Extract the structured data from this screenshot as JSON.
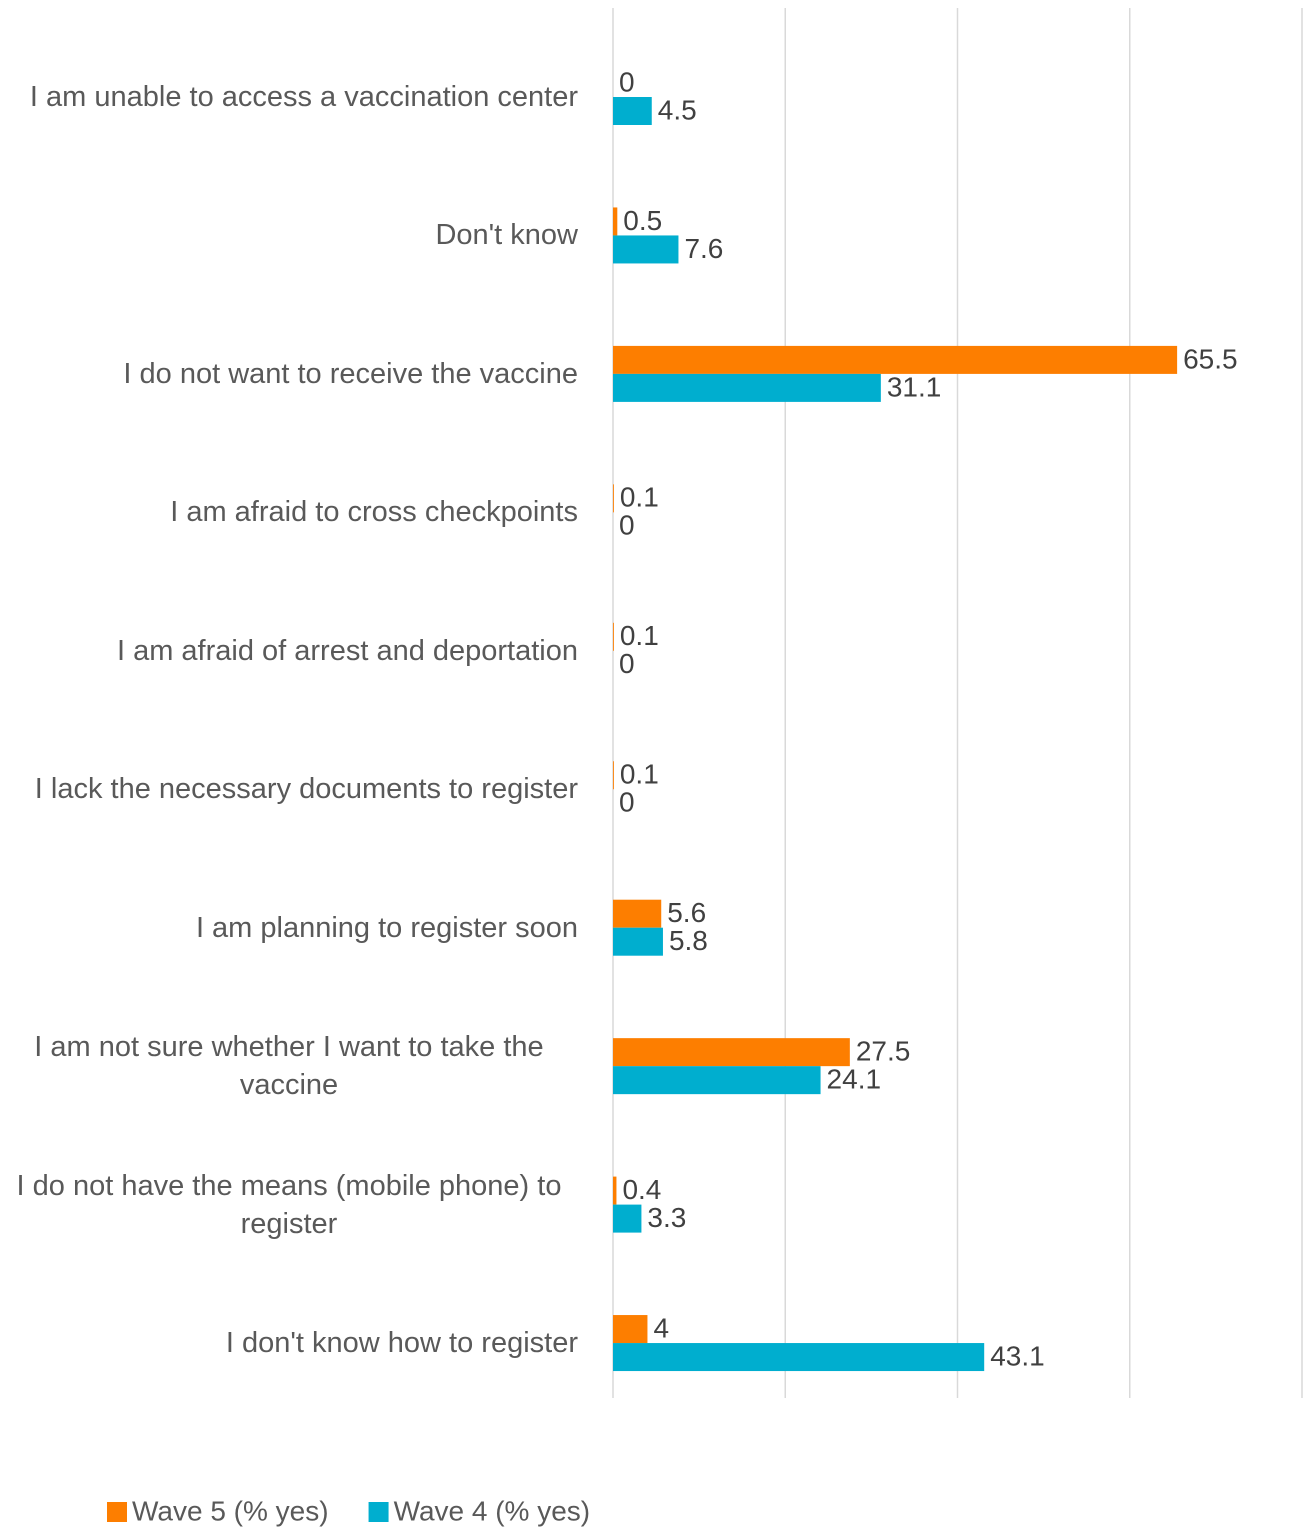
{
  "chart_data": {
    "type": "hbar",
    "categories": [
      "I am unable to access a vaccination center",
      "Don't know",
      "I do not want to receive the vaccine",
      "I am afraid to cross checkpoints",
      "I am afraid of arrest and deportation",
      "I lack the necessary documents to register",
      "I am planning to register soon",
      "I am not sure whether I want to take the vaccine",
      "I do not have the means (mobile phone) to register",
      "I don't know how to register"
    ],
    "series": [
      {
        "name": "Wave 5 (% yes)",
        "color": "#fd7e00",
        "values": [
          0,
          0.5,
          65.5,
          0.1,
          0.1,
          0.1,
          5.6,
          27.5,
          0.4,
          4
        ]
      },
      {
        "name": "Wave 4 (% yes)",
        "color": "#00aecf",
        "values": [
          4.5,
          7.6,
          31.1,
          0,
          0,
          0,
          5.8,
          24.1,
          3.3,
          43.1
        ]
      }
    ],
    "xlim": [
      0,
      80
    ],
    "xticks": [
      0,
      20,
      40,
      60,
      80
    ],
    "grid": true,
    "legend": "bottom"
  }
}
